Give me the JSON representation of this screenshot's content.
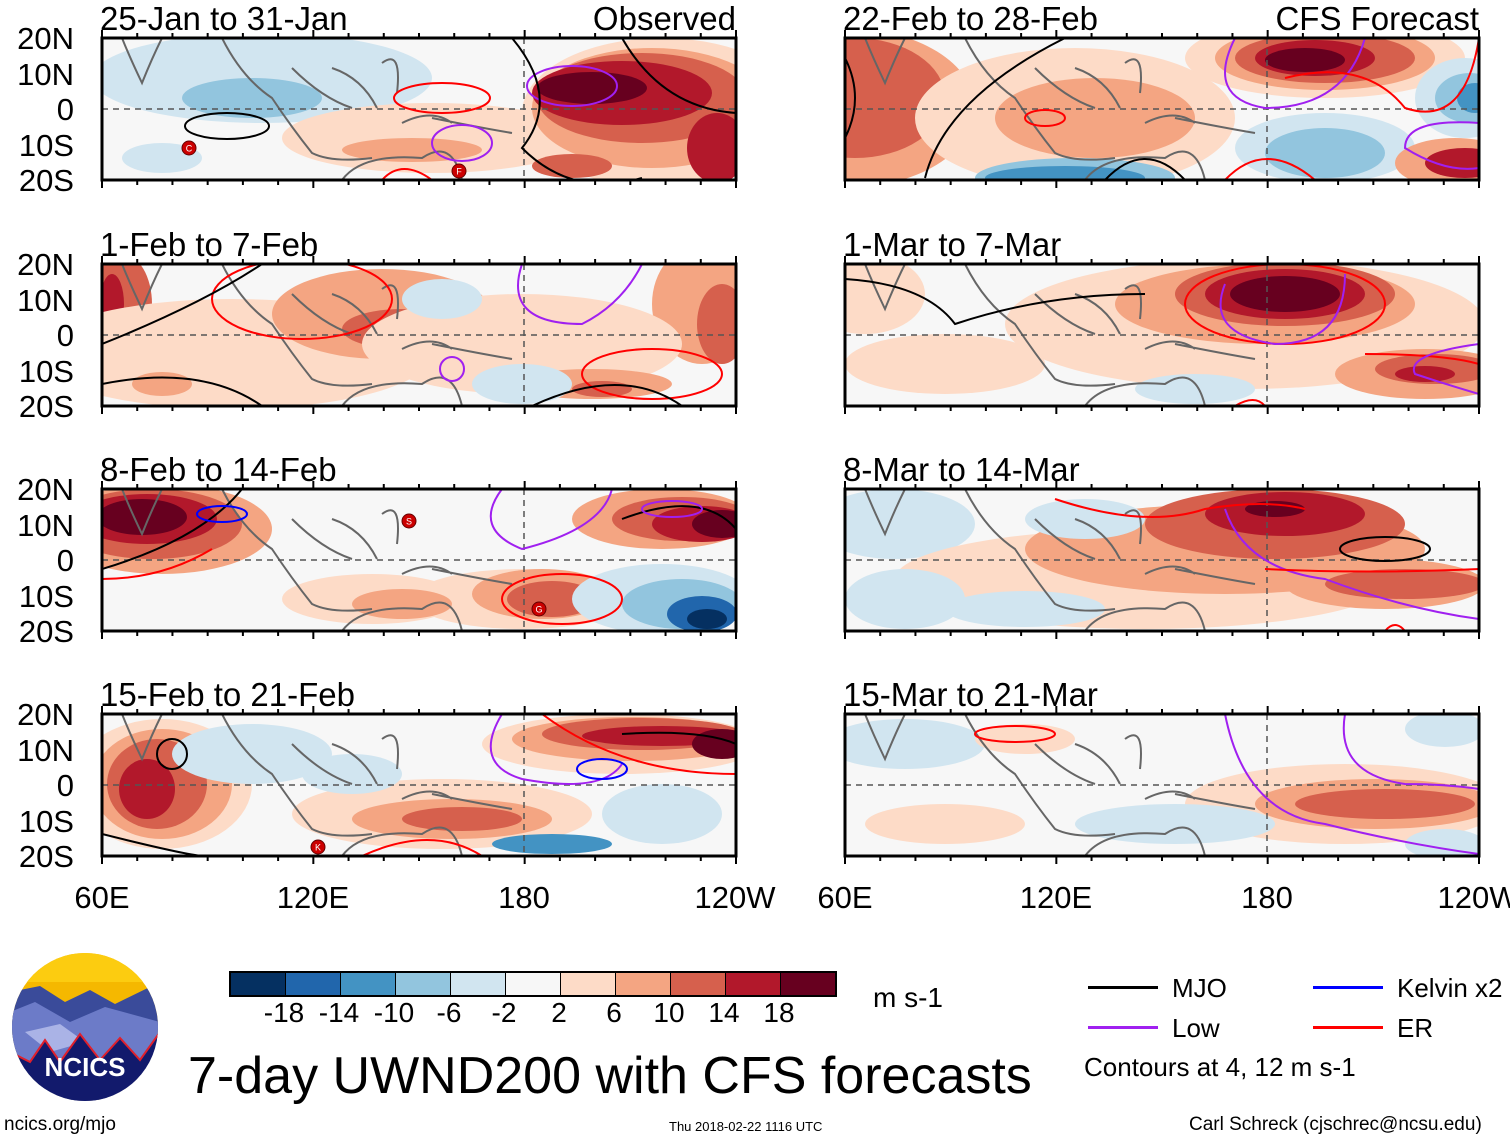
{
  "figure_title": "7-day UWND200 with CFS forecasts",
  "observed_label": "Observed",
  "forecast_label": "CFS Forecast",
  "footer": {
    "url": "ncics.org/mjo",
    "timestamp": "Thu 2018-02-22 1116 UTC",
    "author": "Carl Schreck (cjschrec@ncsu.edu)"
  },
  "logo_text": "NCICS",
  "chart_data": {
    "type": "heatmap",
    "variable": "200-hPa zonal wind anomaly",
    "units": "m s-1",
    "lat_ticks": [
      "20N",
      "10N",
      "0",
      "10S",
      "20S"
    ],
    "lon_ticks": [
      "60E",
      "120E",
      "180",
      "120W"
    ],
    "lat_range": [
      -20,
      20
    ],
    "lon_range": [
      60,
      240
    ],
    "panels": [
      {
        "title": "25-Jan to 31-Jan",
        "source": "Observed",
        "storms": [
          "C",
          "F"
        ]
      },
      {
        "title": "1-Feb to 7-Feb",
        "source": "Observed",
        "storms": []
      },
      {
        "title": "8-Feb to 14-Feb",
        "source": "Observed",
        "storms": [
          "S",
          "G"
        ]
      },
      {
        "title": "15-Feb to 21-Feb",
        "source": "Observed",
        "storms": [
          "K"
        ]
      },
      {
        "title": "22-Feb to 28-Feb",
        "source": "CFS Forecast",
        "storms": []
      },
      {
        "title": "1-Mar to 7-Mar",
        "source": "CFS Forecast",
        "storms": []
      },
      {
        "title": "8-Mar to 14-Mar",
        "source": "CFS Forecast",
        "storms": []
      },
      {
        "title": "15-Mar to 21-Mar",
        "source": "CFS Forecast",
        "storms": []
      }
    ],
    "colorbar": {
      "labels": [
        "-18",
        "-14",
        "-10",
        "-6",
        "-2",
        "2",
        "6",
        "10",
        "14",
        "18"
      ],
      "colors": [
        "#053061",
        "#2166ac",
        "#4393c3",
        "#92c5de",
        "#d1e5f0",
        "#f7f7f7",
        "#fddbc7",
        "#f4a582",
        "#d6604d",
        "#b2182b",
        "#67001f"
      ],
      "units": "m s-1"
    },
    "legend": [
      {
        "label": "MJO",
        "color": "#000000"
      },
      {
        "label": "Kelvin x2",
        "color": "#0000ff"
      },
      {
        "label": "Low",
        "color": "#a020f0"
      },
      {
        "label": "ER",
        "color": "#ff0000"
      }
    ],
    "contour_note": "Contours at 4, 12 m s-1"
  }
}
